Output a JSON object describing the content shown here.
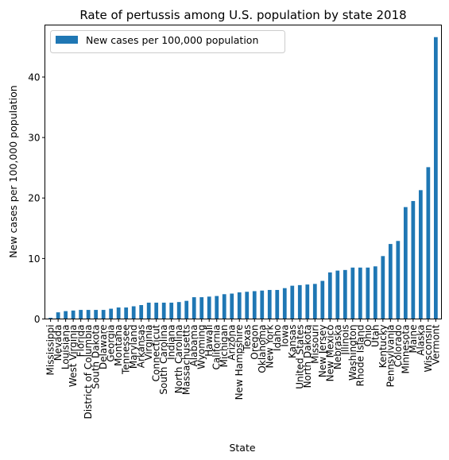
{
  "chart_data": {
    "type": "bar",
    "title": "Rate of pertussis among U.S. population by state 2018",
    "xlabel": "State",
    "ylabel": "New cases per 100,000 population",
    "ylim": [
      0,
      48.6
    ],
    "yticks": [
      0,
      10,
      20,
      30,
      40
    ],
    "legend": {
      "position": "top-left",
      "label": "New cases per 100,000 population"
    },
    "bar_color": "#1f77b4",
    "grid": false,
    "categories": [
      "Mississippi",
      "Nevada",
      "Louisiana",
      "West Virginia",
      "Florida",
      "District of Columbia",
      "South Dakota",
      "Delaware",
      "Georgia",
      "Montana",
      "Tennessee",
      "Maryland",
      "Arkansas",
      "Virginia",
      "Connecticut",
      "South Carolina",
      "Indiana",
      "North Carolina",
      "Massachusetts",
      "Alabama",
      "Wyoming",
      "Hawaii",
      "California",
      "Michigan",
      "Arizona",
      "New Hampshire",
      "Texas",
      "Oregon",
      "Oklahoma",
      "New York",
      "Idaho",
      "Iowa",
      "Kansas",
      "United States",
      "North Dakota",
      "Missouri",
      "New Jersey",
      "New Mexico",
      "Nebraska",
      "Illinois",
      "Washington",
      "Rhode Island",
      "Ohio",
      "Utah",
      "Kentucky",
      "Pennsylvania",
      "Colorado",
      "Minnesota",
      "Maine",
      "Alaska",
      "Wisconsin",
      "Vermont"
    ],
    "series": [
      {
        "name": "New cases per 100,000 population",
        "values": [
          0.2,
          1.1,
          1.3,
          1.4,
          1.5,
          1.5,
          1.5,
          1.5,
          1.7,
          1.9,
          1.9,
          2.1,
          2.3,
          2.7,
          2.7,
          2.7,
          2.7,
          2.8,
          3.0,
          3.6,
          3.6,
          3.7,
          3.8,
          4.1,
          4.2,
          4.4,
          4.5,
          4.6,
          4.7,
          4.8,
          4.8,
          5.1,
          5.5,
          5.6,
          5.7,
          5.8,
          6.3,
          7.7,
          8.0,
          8.1,
          8.5,
          8.5,
          8.5,
          8.7,
          10.4,
          12.4,
          12.9,
          18.5,
          19.5,
          21.3,
          25.1,
          46.6
        ]
      }
    ]
  }
}
